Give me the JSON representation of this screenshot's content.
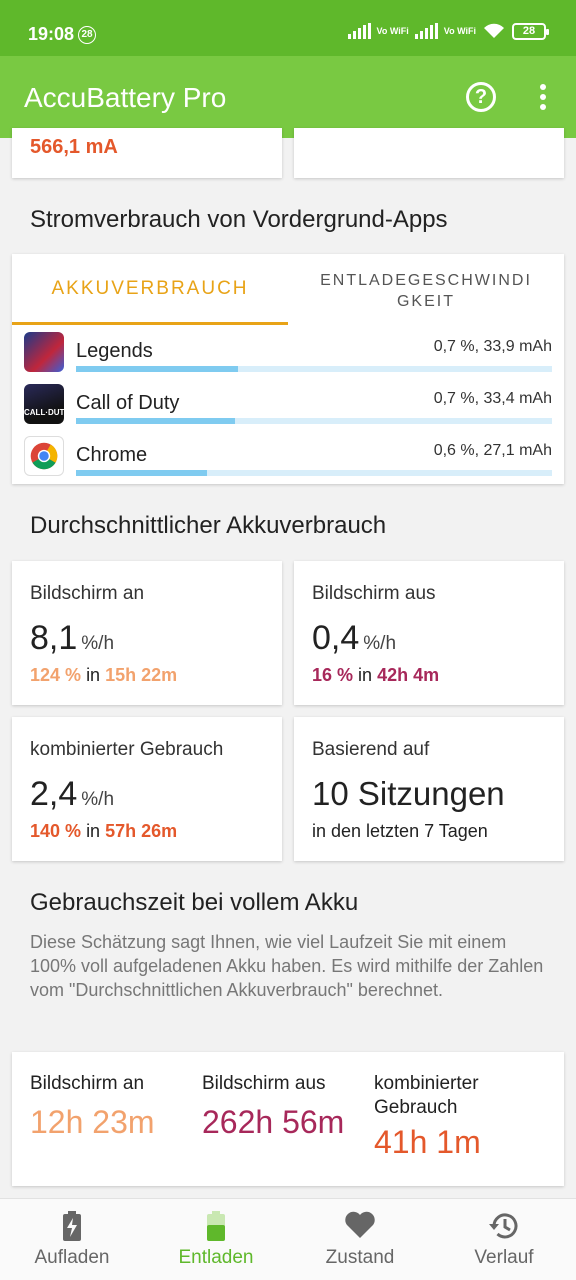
{
  "status_bar": {
    "time": "19:08",
    "notification_count": "28",
    "vo_wifi_1": "Vo WiFi",
    "vo_wifi_2": "Vo WiFi",
    "battery_level": "28"
  },
  "app_bar": {
    "title": "AccuBattery Pro",
    "help_icon": "question-circle-icon",
    "more_icon": "more-vert-icon"
  },
  "top_card": {
    "value": "566,1 mA"
  },
  "foreground": {
    "title": "Stromverbrauch von Vordergrund-Apps",
    "tab_usage": "AKKUVERBRAUCH",
    "tab_speed": "ENTLADEGESCHWINDIGKEIT",
    "apps": [
      {
        "name": "Legends",
        "value": "0,7 %, 33,9 mAh",
        "share": 0.34
      },
      {
        "name": "Call of Duty",
        "value": "0,7 %, 33,4 mAh",
        "share": 0.335
      },
      {
        "name": "Chrome",
        "value": "0,6 %, 27,1 mAh",
        "share": 0.275
      }
    ]
  },
  "average": {
    "title": "Durchschnittlicher Akkuverbrauch",
    "screen_on": {
      "label": "Bildschirm an",
      "value": "8,1",
      "unit": "%/h",
      "percent": "124 %",
      "in": "in",
      "duration": "15h 22m"
    },
    "screen_off": {
      "label": "Bildschirm aus",
      "value": "0,4",
      "unit": "%/h",
      "percent": "16 %",
      "in": "in",
      "duration": "42h 4m"
    },
    "combined": {
      "label": "kombinierter Gebrauch",
      "value": "2,4",
      "unit": "%/h",
      "percent": "140 %",
      "in": "in",
      "duration": "57h 26m"
    },
    "based_on": {
      "label": "Basierend auf",
      "value": "10 Sitzungen",
      "sub": "in den letzten 7 Tagen"
    }
  },
  "full_charge": {
    "title": "Gebrauchszeit bei vollem Akku",
    "description": "Diese Schätzung sagt Ihnen, wie viel Laufzeit Sie mit einem 100% voll aufgeladenen Akku haben. Es wird mithilfe der Zahlen vom \"Durchschnittlichen Akkuverbrauch\" berechnet.",
    "screen_on": {
      "label": "Bildschirm an",
      "value": "12h 23m"
    },
    "screen_off": {
      "label": "Bildschirm aus",
      "value": "262h 56m"
    },
    "combined": {
      "label": "kombinierter Gebrauch",
      "value": "41h 1m"
    }
  },
  "colors": {
    "status_bar": "#5fb82b",
    "app_bar": "#79c942",
    "tab_accent": "#e8a317",
    "screen_on": "#f2a26d",
    "screen_off": "#a7285a",
    "combined": "#e4582b",
    "usage_bar": "#7fcbf0"
  },
  "bottom_nav": {
    "items": [
      {
        "label": "Aufladen",
        "icon": "battery-charging-icon"
      },
      {
        "label": "Entladen",
        "icon": "battery-discharging-icon",
        "active": true
      },
      {
        "label": "Zustand",
        "icon": "heart-icon"
      },
      {
        "label": "Verlauf",
        "icon": "history-icon"
      }
    ]
  }
}
